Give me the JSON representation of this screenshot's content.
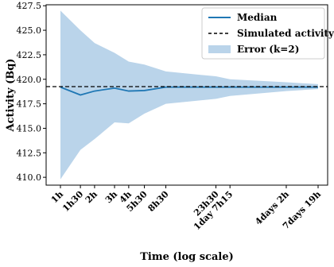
{
  "chart_data": {
    "type": "line",
    "xlabel": "Time (log scale)",
    "ylabel": "Activity (Bq)",
    "x_scale": "log",
    "x_ticks": [
      "1h",
      "1h30",
      "2h",
      "3h",
      "4h",
      "5h30",
      "8h30",
      "23h30",
      "1day 7h15",
      "4days 2h",
      "7days 19h"
    ],
    "x_hours": [
      1,
      1.5,
      2,
      3,
      4,
      5.5,
      8.5,
      23.5,
      31.25,
      98,
      187
    ],
    "y_ticks": [
      "410.0",
      "412.5",
      "415.0",
      "417.5",
      "420.0",
      "422.5",
      "425.0",
      "427.5"
    ],
    "ylim": [
      409.2,
      427.6
    ],
    "grid": false,
    "legend_position": "top-right",
    "series": [
      {
        "name": "Median",
        "kind": "line",
        "color": "#1f77b4",
        "values": [
          419.2,
          418.4,
          418.8,
          419.1,
          418.8,
          418.85,
          419.2,
          419.2,
          419.2,
          419.2,
          419.2
        ]
      },
      {
        "name": "Simulated activity",
        "kind": "hline",
        "color": "#000000",
        "value": 419.25
      },
      {
        "name": "Error (k=2)",
        "kind": "band",
        "color": "#bad4ea",
        "lower": [
          409.8,
          412.8,
          413.9,
          415.6,
          415.5,
          416.5,
          417.5,
          418.0,
          418.3,
          418.8,
          419.0
        ],
        "upper": [
          427.0,
          425.0,
          423.7,
          422.7,
          421.8,
          421.5,
          420.8,
          420.3,
          420.0,
          419.7,
          419.5
        ]
      }
    ]
  }
}
